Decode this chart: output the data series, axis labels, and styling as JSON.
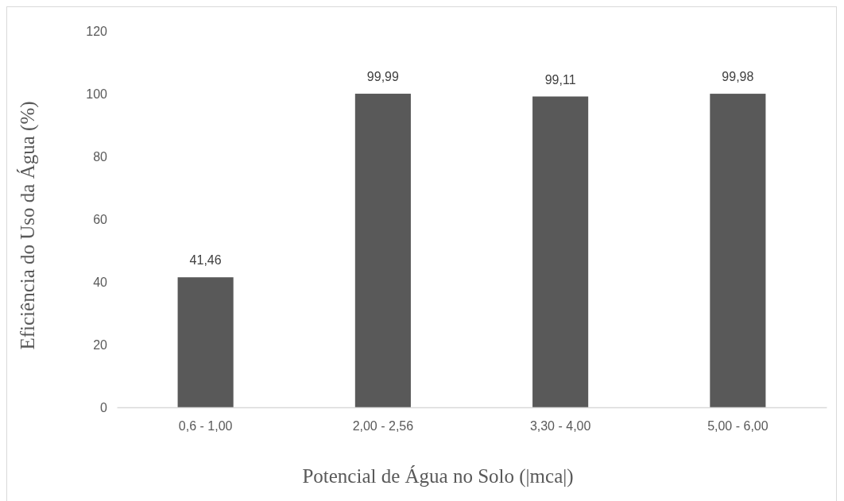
{
  "chart_data": {
    "type": "bar",
    "xlabel": "Potencial de Água no Solo (|mca|)",
    "ylabel": "Eficiência do Uso da Água (%)",
    "categories": [
      "0,6 - 1,00",
      "2,00 - 2,56",
      "3,30 - 4,00",
      "5,00 - 6,00"
    ],
    "values": [
      41.46,
      99.99,
      99.11,
      99.98
    ],
    "color": "#595959",
    "value_labels": [
      "41,46",
      "99,99",
      "99,11",
      "99,98"
    ],
    "ylim": [
      0,
      120
    ],
    "yticks": [
      0,
      20,
      40,
      60,
      80,
      100,
      120
    ],
    "grid": false
  }
}
